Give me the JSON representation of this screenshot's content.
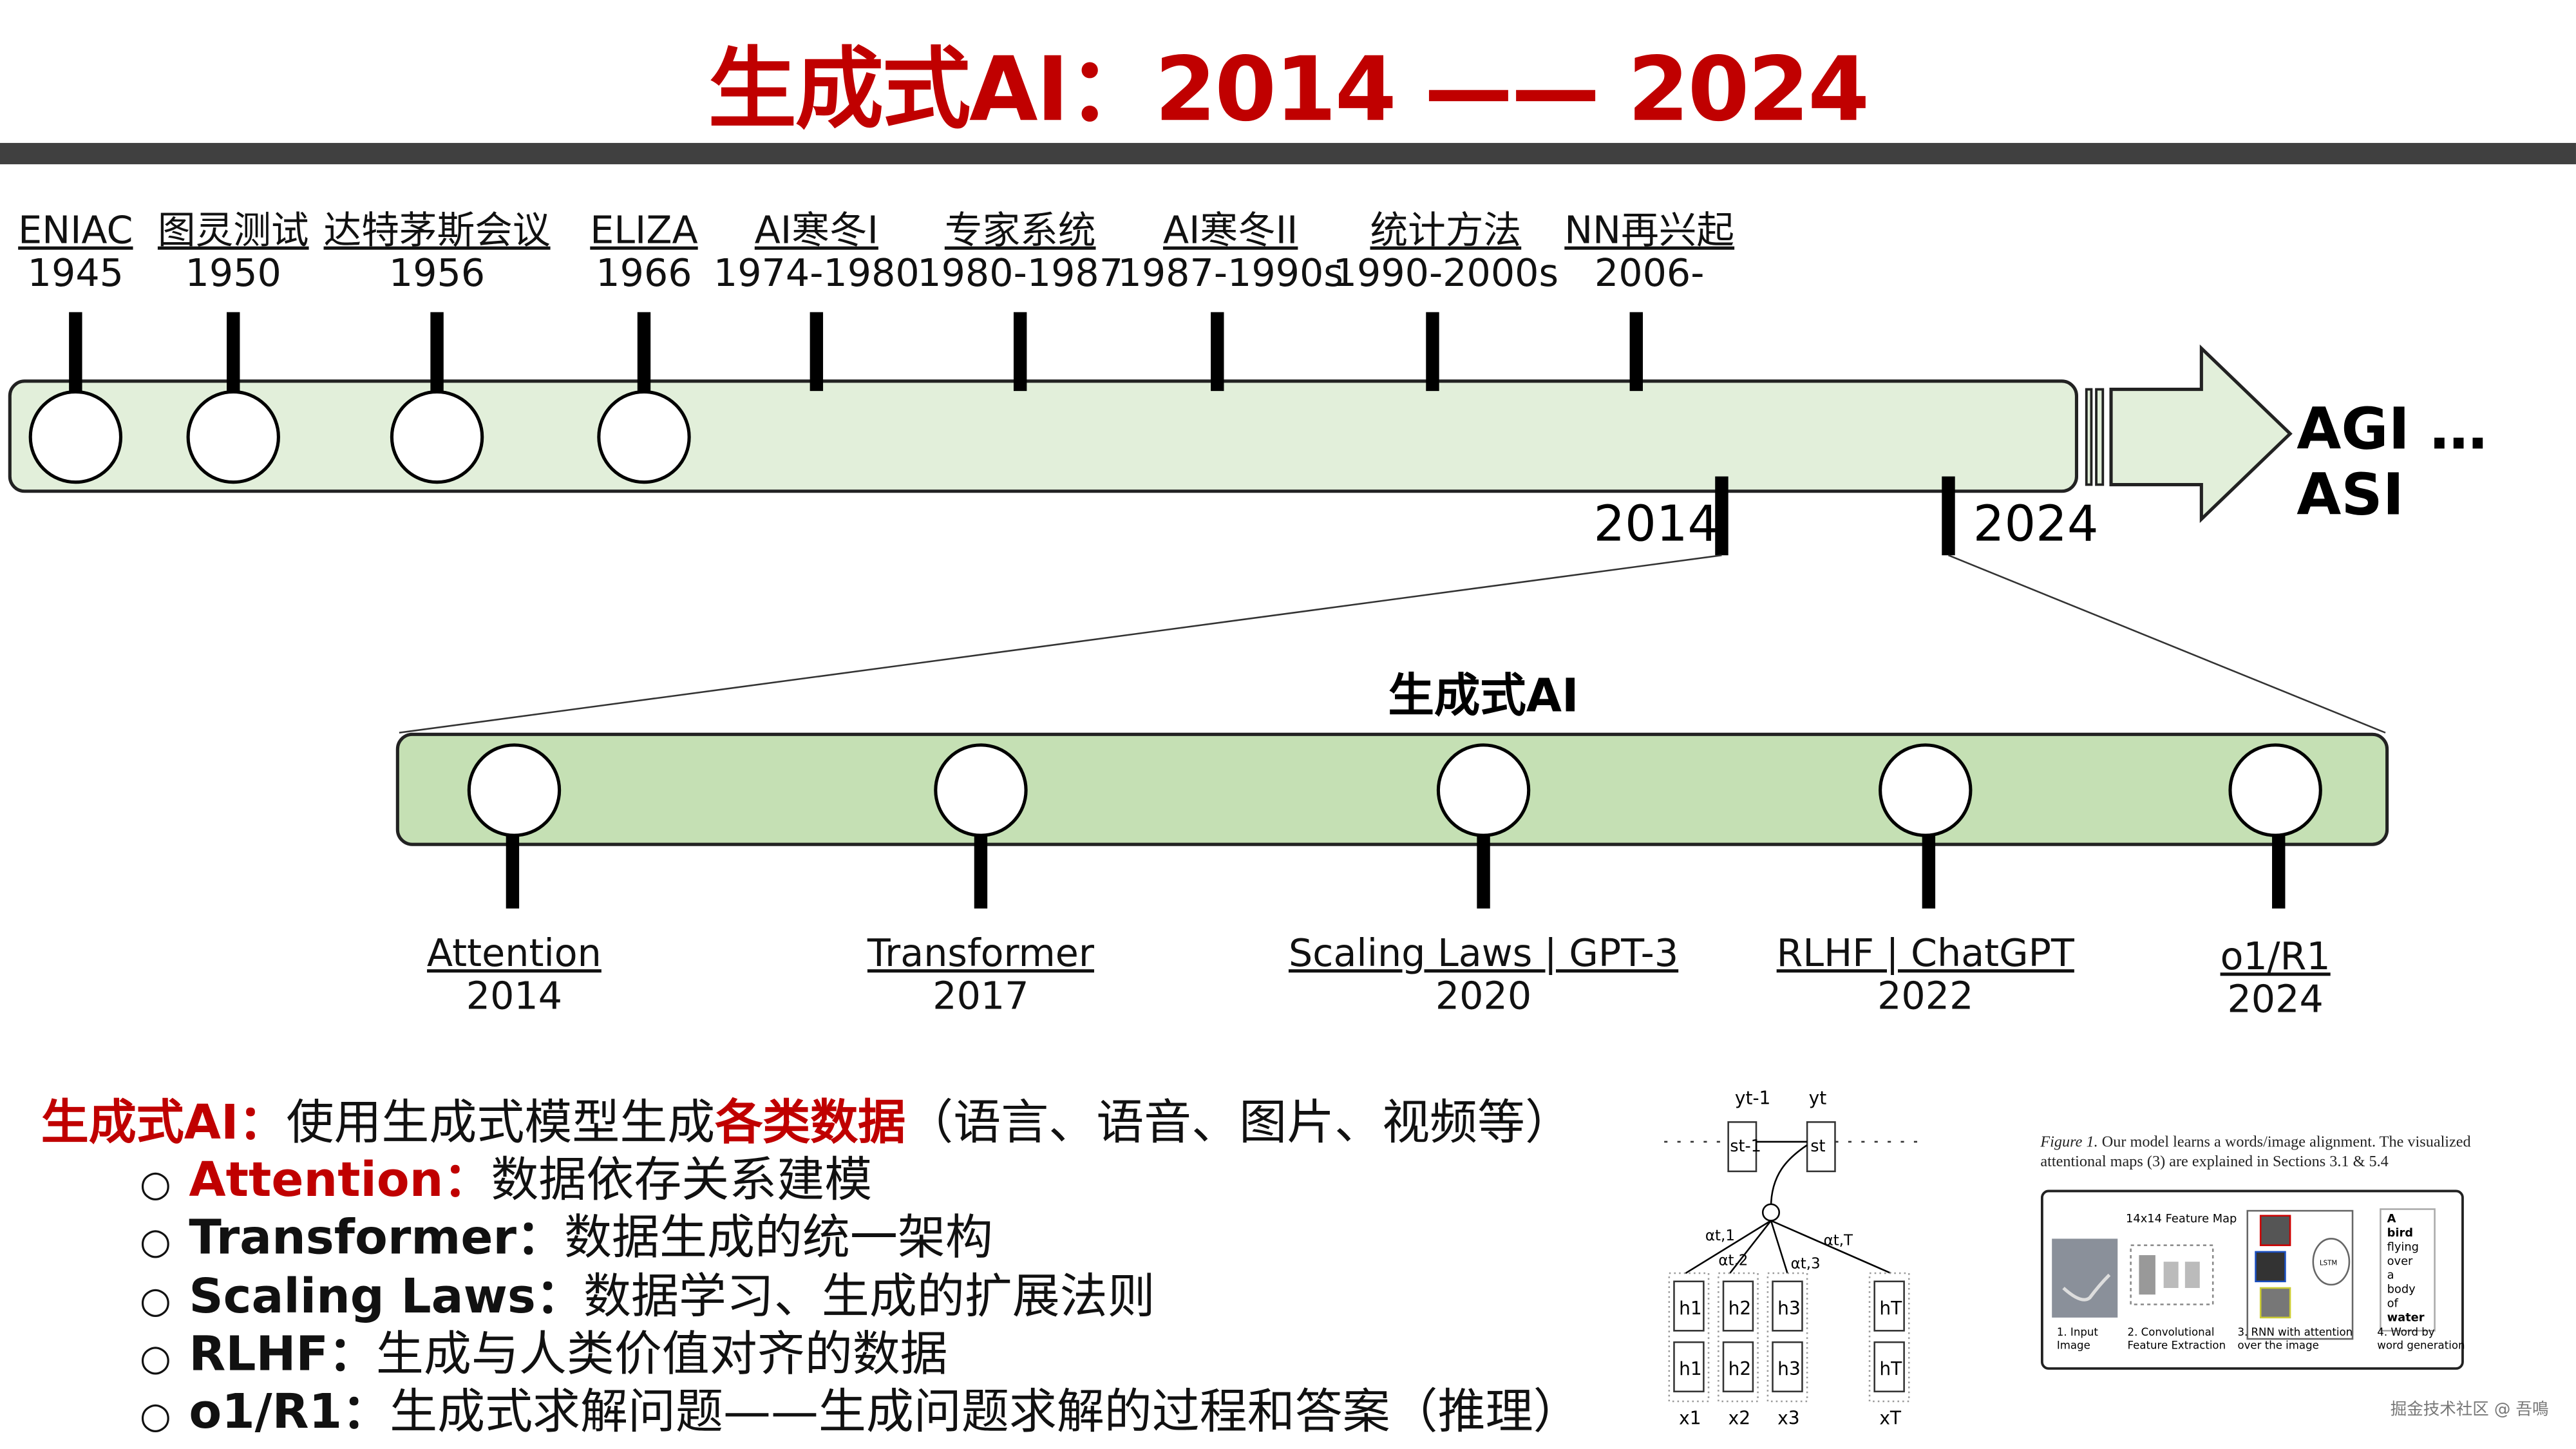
{
  "title": "生成式AI：2014 —— 2024",
  "colors": {
    "title": "#c00000",
    "header_bar": "#404040",
    "timeline_fill": "#e2efda",
    "gen_ai_fill": "#c5e0b4"
  },
  "history": [
    {
      "name": "ENIAC",
      "year": "1945",
      "circle": true
    },
    {
      "name": "图灵测试",
      "year": "1950",
      "circle": true
    },
    {
      "name": "达特茅斯会议",
      "year": "1956",
      "circle": true
    },
    {
      "name": "ELIZA",
      "year": "1966",
      "circle": true
    },
    {
      "name": "AI寒冬I",
      "year": "1974-1980",
      "circle": false
    },
    {
      "name": "专家系统",
      "year": "1980-1987",
      "circle": false
    },
    {
      "name": "AI寒冬II",
      "year": "1987-1990s",
      "circle": false
    },
    {
      "name": "统计方法",
      "year": "1990-2000s",
      "circle": false
    },
    {
      "name": "NN再兴起",
      "year": "2006-",
      "circle": false
    }
  ],
  "future": "AGI … ASI",
  "range_start": "2014",
  "range_end": "2024",
  "gen_ai_title": "生成式AI",
  "gen_ai_events": [
    {
      "name": "Attention",
      "year": "2014"
    },
    {
      "name": "Transformer",
      "year": "2017"
    },
    {
      "name": "Scaling Laws | GPT-3",
      "year": "2020"
    },
    {
      "name": "RLHF | ChatGPT",
      "year": "2022"
    },
    {
      "name": "o1/R1",
      "year": "2024"
    }
  ],
  "summary": {
    "term": "生成式AI：",
    "text1": "使用生成式模型生成",
    "highlight": "各类数据",
    "text2": "（语言、语音、图片、视频等）",
    "bullet_symbol": "○",
    "bullets": [
      {
        "label": "Attention：",
        "text": "数据依存关系建模"
      },
      {
        "label": "Transformer：",
        "text": "数据生成的统一架构"
      },
      {
        "label": "Scaling Laws：",
        "text": "数据学习、生成的扩展法则"
      },
      {
        "label": "RLHF：",
        "text": "生成与人类价值对齐的数据"
      },
      {
        "label": "o1/R1：",
        "text": "生成式求解问题——生成问题求解的过程和答案（推理）"
      }
    ]
  },
  "attention_diagram": {
    "outputs": [
      "yt-1",
      "yt"
    ],
    "states": [
      "st-1",
      "st"
    ],
    "weights": [
      "αt,1",
      "αt,2",
      "αt,3",
      "αt,T"
    ],
    "forward": [
      "h1",
      "h2",
      "h3",
      "hT"
    ],
    "backward": [
      "h1",
      "h2",
      "h3",
      "hT"
    ],
    "inputs": [
      "x1",
      "x2",
      "x3",
      "xT"
    ]
  },
  "caption_figure": {
    "caption_prefix": "Figure 1.",
    "caption": "Our model learns a words/image alignment. The visualized attentional maps (3) are explained in Sections 3.1 & 5.4",
    "feature_map": "14x14 Feature Map",
    "lstm": "LSTM",
    "words": [
      "A",
      "bird",
      "flying",
      "over",
      "a",
      "body",
      "of",
      "water"
    ],
    "steps": [
      "1. Input Image",
      "2. Convolutional Feature Extraction",
      "3. RNN with attention over the image",
      "4. Word by word generation"
    ]
  },
  "watermark": "掘金技术社区 @ 吾鳴"
}
